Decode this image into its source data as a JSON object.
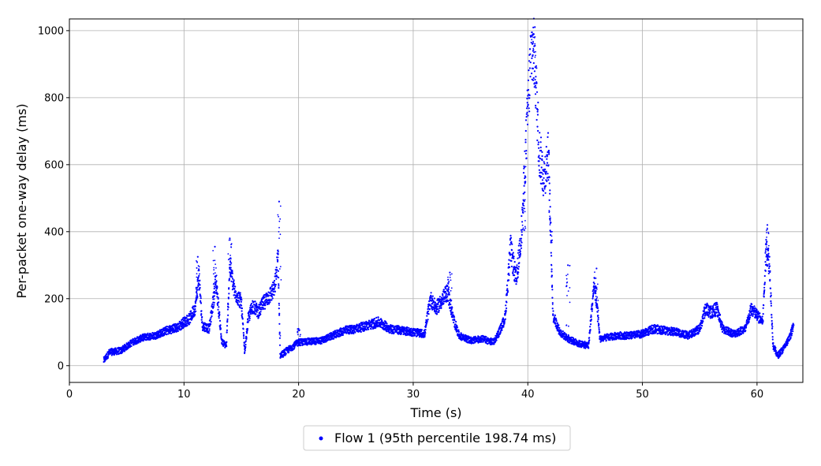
{
  "chart_data": {
    "type": "scatter",
    "title": "",
    "xlabel": "Time (s)",
    "ylabel": "Per-packet one-way delay (ms)",
    "xlim": [
      0,
      64
    ],
    "ylim": [
      -50,
      1035
    ],
    "xticks": [
      0,
      10,
      20,
      30,
      40,
      50,
      60
    ],
    "yticks": [
      0,
      200,
      400,
      600,
      800,
      1000
    ],
    "grid": true,
    "legend_position": "bottom-center",
    "series": [
      {
        "name": "Flow 1 (95th percentile 198.74 ms)",
        "color": "#0000ff",
        "marker": "dot",
        "x_range": [
          3.0,
          63.2
        ],
        "trend": [
          [
            3.0,
            15
          ],
          [
            3.5,
            40
          ],
          [
            4.5,
            45
          ],
          [
            5.5,
            70
          ],
          [
            6.5,
            85
          ],
          [
            7.5,
            90
          ],
          [
            8.5,
            105
          ],
          [
            9.5,
            115
          ],
          [
            10.0,
            130
          ],
          [
            10.5,
            140
          ],
          [
            11.0,
            175
          ],
          [
            11.3,
            270
          ],
          [
            11.6,
            120
          ],
          [
            12.2,
            110
          ],
          [
            12.8,
            250
          ],
          [
            13.3,
            70
          ],
          [
            13.7,
            60
          ],
          [
            14.0,
            300
          ],
          [
            14.4,
            220
          ],
          [
            15.0,
            190
          ],
          [
            15.3,
            40
          ],
          [
            15.6,
            140
          ],
          [
            16.0,
            180
          ],
          [
            16.5,
            160
          ],
          [
            17.0,
            190
          ],
          [
            17.5,
            210
          ],
          [
            17.9,
            230
          ],
          [
            18.2,
            320
          ],
          [
            18.4,
            30
          ],
          [
            19.0,
            45
          ],
          [
            20.0,
            70
          ],
          [
            21.0,
            72
          ],
          [
            22.0,
            75
          ],
          [
            23.0,
            90
          ],
          [
            24.0,
            105
          ],
          [
            25.0,
            110
          ],
          [
            26.0,
            120
          ],
          [
            27.0,
            130
          ],
          [
            28.0,
            110
          ],
          [
            29.0,
            105
          ],
          [
            30.0,
            100
          ],
          [
            31.0,
            95
          ],
          [
            31.5,
            200
          ],
          [
            32.0,
            170
          ],
          [
            33.0,
            220
          ],
          [
            33.5,
            140
          ],
          [
            34.0,
            90
          ],
          [
            35.0,
            75
          ],
          [
            36.0,
            80
          ],
          [
            37.0,
            70
          ],
          [
            37.5,
            100
          ],
          [
            38.0,
            140
          ],
          [
            38.5,
            350
          ],
          [
            39.0,
            250
          ],
          [
            39.5,
            420
          ],
          [
            39.9,
            700
          ],
          [
            40.3,
            950
          ],
          [
            40.6,
            920
          ],
          [
            41.0,
            640
          ],
          [
            41.4,
            560
          ],
          [
            41.8,
            630
          ],
          [
            42.2,
            150
          ],
          [
            42.8,
            100
          ],
          [
            43.5,
            80
          ],
          [
            44.5,
            65
          ],
          [
            45.3,
            60
          ],
          [
            45.8,
            250
          ],
          [
            46.3,
            80
          ],
          [
            47.0,
            85
          ],
          [
            48.0,
            90
          ],
          [
            49.0,
            90
          ],
          [
            50.0,
            95
          ],
          [
            51.0,
            110
          ],
          [
            52.0,
            105
          ],
          [
            53.0,
            100
          ],
          [
            54.0,
            90
          ],
          [
            55.0,
            110
          ],
          [
            55.5,
            170
          ],
          [
            56.0,
            160
          ],
          [
            56.5,
            170
          ],
          [
            57.0,
            110
          ],
          [
            58.0,
            95
          ],
          [
            59.0,
            110
          ],
          [
            59.5,
            170
          ],
          [
            60.0,
            150
          ],
          [
            60.5,
            130
          ],
          [
            60.8,
            350
          ],
          [
            61.1,
            300
          ],
          [
            61.4,
            60
          ],
          [
            61.8,
            30
          ],
          [
            62.3,
            50
          ],
          [
            62.8,
            80
          ],
          [
            63.2,
            120
          ]
        ],
        "peaks": [
          [
            40.5,
            990
          ],
          [
            18.3,
            490
          ],
          [
            60.9,
            420
          ],
          [
            14.0,
            380
          ],
          [
            12.7,
            355
          ],
          [
            11.2,
            325
          ],
          [
            39.7,
            405
          ],
          [
            43.5,
            300
          ],
          [
            46.0,
            290
          ],
          [
            33.2,
            278
          ],
          [
            42.0,
            400
          ],
          [
            20.0,
            110
          ]
        ]
      }
    ]
  }
}
